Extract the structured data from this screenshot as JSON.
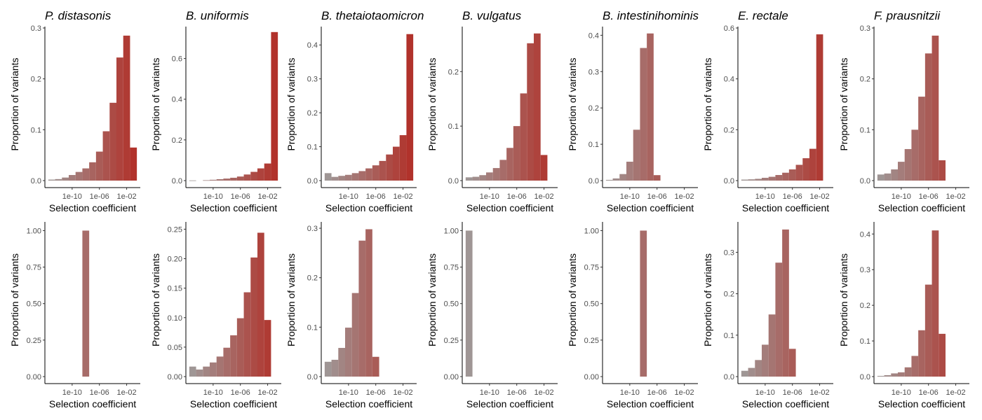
{
  "colors": {
    "low": "#9e9e9e",
    "high": "#b22a22",
    "axis": "#000000",
    "tick_text": "#4d4d4d"
  },
  "chart_data": [
    {
      "type": "bar",
      "row": 1,
      "title": "P. distasonis",
      "xlabel": "Selection coefficient",
      "ylabel": "Proportion of variants",
      "x_min": -14,
      "x_max": 0,
      "x_ticks": [
        {
          "v": -10,
          "label": "1e-10"
        },
        {
          "v": -6,
          "label": "1e-06"
        },
        {
          "v": -2,
          "label": "1e-02"
        }
      ],
      "y_max": 0.3,
      "y_ticks": [
        {
          "v": 0,
          "label": "0.0"
        },
        {
          "v": 0.1,
          "label": "0.1"
        },
        {
          "v": 0.2,
          "label": "0.2"
        },
        {
          "v": 0.3,
          "label": "0.3"
        }
      ],
      "bins": [
        {
          "x": -13,
          "y": 0.002
        },
        {
          "x": -12,
          "y": 0.003
        },
        {
          "x": -11,
          "y": 0.006
        },
        {
          "x": -10,
          "y": 0.011
        },
        {
          "x": -9,
          "y": 0.017
        },
        {
          "x": -8,
          "y": 0.024
        },
        {
          "x": -7,
          "y": 0.036
        },
        {
          "x": -6,
          "y": 0.057
        },
        {
          "x": -5,
          "y": 0.097
        },
        {
          "x": -4,
          "y": 0.153
        },
        {
          "x": -3,
          "y": 0.242
        },
        {
          "x": -2,
          "y": 0.285
        },
        {
          "x": -1,
          "y": 0.065
        }
      ]
    },
    {
      "type": "bar",
      "row": 1,
      "title": "B. uniformis",
      "xlabel": "Selection coefficient",
      "ylabel": "Proportion of variants",
      "x_min": -14,
      "x_max": 0,
      "x_ticks": [
        {
          "v": -10,
          "label": "1e-10"
        },
        {
          "v": -6,
          "label": "1e-06"
        },
        {
          "v": -2,
          "label": "1e-02"
        }
      ],
      "y_max": 0.75,
      "y_ticks": [
        {
          "v": 0,
          "label": "0.0"
        },
        {
          "v": 0.2,
          "label": "0.2"
        },
        {
          "v": 0.4,
          "label": "0.4"
        },
        {
          "v": 0.6,
          "label": "0.6"
        }
      ],
      "bins": [
        {
          "x": -13,
          "y": 0.001
        },
        {
          "x": -11,
          "y": 0.002
        },
        {
          "x": -10,
          "y": 0.004
        },
        {
          "x": -9,
          "y": 0.007
        },
        {
          "x": -8,
          "y": 0.01
        },
        {
          "x": -7,
          "y": 0.014
        },
        {
          "x": -6,
          "y": 0.02
        },
        {
          "x": -5,
          "y": 0.03
        },
        {
          "x": -4,
          "y": 0.043
        },
        {
          "x": -3,
          "y": 0.06
        },
        {
          "x": -2,
          "y": 0.084
        },
        {
          "x": -1,
          "y": 0.73
        }
      ]
    },
    {
      "type": "bar",
      "row": 1,
      "title": "B. thetaiotaomicron",
      "xlabel": "Selection coefficient",
      "ylabel": "Proportion of variants",
      "x_min": -14,
      "x_max": 0,
      "x_ticks": [
        {
          "v": -10,
          "label": "1e-10"
        },
        {
          "v": -6,
          "label": "1e-06"
        },
        {
          "v": -2,
          "label": "1e-02"
        }
      ],
      "y_max": 0.45,
      "y_ticks": [
        {
          "v": 0,
          "label": "0.0"
        },
        {
          "v": 0.1,
          "label": "0.1"
        },
        {
          "v": 0.2,
          "label": "0.2"
        },
        {
          "v": 0.3,
          "label": "0.3"
        },
        {
          "v": 0.4,
          "label": "0.4"
        }
      ],
      "bins": [
        {
          "x": -13,
          "y": 0.022
        },
        {
          "x": -12,
          "y": 0.011
        },
        {
          "x": -11,
          "y": 0.014
        },
        {
          "x": -10,
          "y": 0.017
        },
        {
          "x": -9,
          "y": 0.022
        },
        {
          "x": -8,
          "y": 0.028
        },
        {
          "x": -7,
          "y": 0.036
        },
        {
          "x": -6,
          "y": 0.045
        },
        {
          "x": -5,
          "y": 0.058
        },
        {
          "x": -4,
          "y": 0.077
        },
        {
          "x": -3,
          "y": 0.1
        },
        {
          "x": -2,
          "y": 0.134
        },
        {
          "x": -1,
          "y": 0.432
        }
      ]
    },
    {
      "type": "bar",
      "row": 1,
      "title": "B. vulgatus",
      "xlabel": "Selection coefficient",
      "ylabel": "Proportion of variants",
      "x_min": -14,
      "x_max": 0,
      "x_ticks": [
        {
          "v": -10,
          "label": "1e-10"
        },
        {
          "v": -6,
          "label": "1e-06"
        },
        {
          "v": -2,
          "label": "1e-02"
        }
      ],
      "y_max": 0.28,
      "y_ticks": [
        {
          "v": 0,
          "label": "0.0"
        },
        {
          "v": 0.1,
          "label": "0.1"
        },
        {
          "v": 0.2,
          "label": "0.2"
        }
      ],
      "bins": [
        {
          "x": -13,
          "y": 0.006
        },
        {
          "x": -12,
          "y": 0.007
        },
        {
          "x": -11,
          "y": 0.01
        },
        {
          "x": -10,
          "y": 0.015
        },
        {
          "x": -9,
          "y": 0.023
        },
        {
          "x": -8,
          "y": 0.038
        },
        {
          "x": -7,
          "y": 0.06
        },
        {
          "x": -6,
          "y": 0.1
        },
        {
          "x": -5,
          "y": 0.16
        },
        {
          "x": -4,
          "y": 0.252
        },
        {
          "x": -3,
          "y": 0.27
        },
        {
          "x": -2,
          "y": 0.047
        }
      ]
    },
    {
      "type": "bar",
      "row": 1,
      "title": "B. intestinihominis",
      "xlabel": "Selection coefficient",
      "ylabel": "Proportion of variants",
      "x_min": -14,
      "x_max": 0,
      "x_ticks": [
        {
          "v": -10,
          "label": "1e-10"
        },
        {
          "v": -6,
          "label": "1e-06"
        },
        {
          "v": -2,
          "label": "1e-02"
        }
      ],
      "y_max": 0.42,
      "y_ticks": [
        {
          "v": 0,
          "label": "0.0"
        },
        {
          "v": 0.1,
          "label": "0.1"
        },
        {
          "v": 0.2,
          "label": "0.2"
        },
        {
          "v": 0.3,
          "label": "0.3"
        },
        {
          "v": 0.4,
          "label": "0.4"
        }
      ],
      "bins": [
        {
          "x": -13,
          "y": 0.002
        },
        {
          "x": -12,
          "y": 0.006
        },
        {
          "x": -11,
          "y": 0.018
        },
        {
          "x": -10,
          "y": 0.052
        },
        {
          "x": -9,
          "y": 0.14
        },
        {
          "x": -8,
          "y": 0.365
        },
        {
          "x": -7,
          "y": 0.405
        },
        {
          "x": -6,
          "y": 0.015
        }
      ]
    },
    {
      "type": "bar",
      "row": 1,
      "title": "E. rectale",
      "xlabel": "Selection coefficient",
      "ylabel": "Proportion of variants",
      "x_min": -14,
      "x_max": 0,
      "x_ticks": [
        {
          "v": -10,
          "label": "1e-10"
        },
        {
          "v": -6,
          "label": "1e-06"
        },
        {
          "v": -2,
          "label": "1e-02"
        }
      ],
      "y_max": 0.6,
      "y_ticks": [
        {
          "v": 0,
          "label": "0.0"
        },
        {
          "v": 0.2,
          "label": "0.2"
        },
        {
          "v": 0.4,
          "label": "0.4"
        },
        {
          "v": 0.6,
          "label": "0.6"
        }
      ],
      "bins": [
        {
          "x": -13,
          "y": 0.004
        },
        {
          "x": -12,
          "y": 0.005
        },
        {
          "x": -11,
          "y": 0.007
        },
        {
          "x": -10,
          "y": 0.011
        },
        {
          "x": -9,
          "y": 0.015
        },
        {
          "x": -8,
          "y": 0.022
        },
        {
          "x": -7,
          "y": 0.031
        },
        {
          "x": -6,
          "y": 0.044
        },
        {
          "x": -5,
          "y": 0.062
        },
        {
          "x": -4,
          "y": 0.088
        },
        {
          "x": -3,
          "y": 0.125
        },
        {
          "x": -2,
          "y": 0.575
        }
      ]
    },
    {
      "type": "bar",
      "row": 1,
      "title": "F. prausnitzii",
      "xlabel": "Selection coefficient",
      "ylabel": "Proportion of variants",
      "x_min": -14,
      "x_max": 0,
      "x_ticks": [
        {
          "v": -10,
          "label": "1e-10"
        },
        {
          "v": -6,
          "label": "1e-06"
        },
        {
          "v": -2,
          "label": "1e-02"
        }
      ],
      "y_max": 0.3,
      "y_ticks": [
        {
          "v": 0,
          "label": "0.0"
        },
        {
          "v": 0.1,
          "label": "0.1"
        },
        {
          "v": 0.2,
          "label": "0.2"
        },
        {
          "v": 0.3,
          "label": "0.3"
        }
      ],
      "bins": [
        {
          "x": -13,
          "y": 0.012
        },
        {
          "x": -12,
          "y": 0.014
        },
        {
          "x": -11,
          "y": 0.022
        },
        {
          "x": -10,
          "y": 0.037
        },
        {
          "x": -9,
          "y": 0.062
        },
        {
          "x": -8,
          "y": 0.1
        },
        {
          "x": -7,
          "y": 0.165
        },
        {
          "x": -6,
          "y": 0.25
        },
        {
          "x": -5,
          "y": 0.285
        },
        {
          "x": -4,
          "y": 0.04
        }
      ]
    },
    {
      "type": "bar",
      "row": 2,
      "title": "",
      "xlabel": "Selection coefficient",
      "ylabel": "Proportion of variants",
      "x_min": -14,
      "x_max": 0,
      "x_ticks": [
        {
          "v": -10,
          "label": "1e-10"
        },
        {
          "v": -6,
          "label": "1e-06"
        },
        {
          "v": -2,
          "label": "1e-02"
        }
      ],
      "y_max": 1.05,
      "y_ticks": [
        {
          "v": 0,
          "label": "0.00"
        },
        {
          "v": 0.25,
          "label": "0.25"
        },
        {
          "v": 0.5,
          "label": "0.50"
        },
        {
          "v": 0.75,
          "label": "0.75"
        },
        {
          "v": 1.0,
          "label": "1.00"
        }
      ],
      "bins": [
        {
          "x": -8,
          "y": 1.0
        }
      ]
    },
    {
      "type": "bar",
      "row": 2,
      "title": "",
      "xlabel": "Selection coefficient",
      "ylabel": "Proportion of variants",
      "x_min": -14,
      "x_max": 0,
      "x_ticks": [
        {
          "v": -10,
          "label": "1e-10"
        },
        {
          "v": -6,
          "label": "1e-06"
        },
        {
          "v": -2,
          "label": "1e-02"
        }
      ],
      "y_max": 0.26,
      "y_ticks": [
        {
          "v": 0,
          "label": "0.00"
        },
        {
          "v": 0.05,
          "label": "0.05"
        },
        {
          "v": 0.1,
          "label": "0.10"
        },
        {
          "v": 0.15,
          "label": "0.15"
        },
        {
          "v": 0.2,
          "label": "0.20"
        },
        {
          "v": 0.25,
          "label": "0.25"
        }
      ],
      "bins": [
        {
          "x": -13,
          "y": 0.017
        },
        {
          "x": -12,
          "y": 0.012
        },
        {
          "x": -11,
          "y": 0.017
        },
        {
          "x": -10,
          "y": 0.024
        },
        {
          "x": -9,
          "y": 0.034
        },
        {
          "x": -8,
          "y": 0.049
        },
        {
          "x": -7,
          "y": 0.07
        },
        {
          "x": -6,
          "y": 0.099
        },
        {
          "x": -5,
          "y": 0.143
        },
        {
          "x": -4,
          "y": 0.202
        },
        {
          "x": -3,
          "y": 0.244
        },
        {
          "x": -2,
          "y": 0.096
        }
      ]
    },
    {
      "type": "bar",
      "row": 2,
      "title": "",
      "xlabel": "Selection coefficient",
      "ylabel": "Proportion of variants",
      "x_min": -14,
      "x_max": 0,
      "x_ticks": [
        {
          "v": -10,
          "label": "1e-10"
        },
        {
          "v": -6,
          "label": "1e-06"
        },
        {
          "v": -2,
          "label": "1e-02"
        }
      ],
      "y_max": 0.31,
      "y_ticks": [
        {
          "v": 0,
          "label": "0.0"
        },
        {
          "v": 0.1,
          "label": "0.1"
        },
        {
          "v": 0.2,
          "label": "0.2"
        },
        {
          "v": 0.3,
          "label": "0.3"
        }
      ],
      "bins": [
        {
          "x": -13,
          "y": 0.03
        },
        {
          "x": -12,
          "y": 0.034
        },
        {
          "x": -11,
          "y": 0.058
        },
        {
          "x": -10,
          "y": 0.099
        },
        {
          "x": -9,
          "y": 0.169
        },
        {
          "x": -8,
          "y": 0.275
        },
        {
          "x": -7,
          "y": 0.298
        },
        {
          "x": -6,
          "y": 0.04
        }
      ]
    },
    {
      "type": "bar",
      "row": 2,
      "title": "",
      "xlabel": "Selection coefficient",
      "ylabel": "Proportion of variants",
      "x_min": -14,
      "x_max": 0,
      "x_ticks": [
        {
          "v": -10,
          "label": "1e-10"
        },
        {
          "v": -6,
          "label": "1e-06"
        },
        {
          "v": -2,
          "label": "1e-02"
        }
      ],
      "y_max": 1.05,
      "y_ticks": [
        {
          "v": 0,
          "label": "0.00"
        },
        {
          "v": 0.25,
          "label": "0.25"
        },
        {
          "v": 0.5,
          "label": "0.50"
        },
        {
          "v": 0.75,
          "label": "0.75"
        },
        {
          "v": 1.0,
          "label": "1.00"
        }
      ],
      "bins": [
        {
          "x": -13,
          "y": 1.0
        }
      ]
    },
    {
      "type": "bar",
      "row": 2,
      "title": "",
      "xlabel": "Selection coefficient",
      "ylabel": "Proportion of variants",
      "x_min": -14,
      "x_max": 0,
      "x_ticks": [
        {
          "v": -10,
          "label": "1e-10"
        },
        {
          "v": -6,
          "label": "1e-06"
        },
        {
          "v": -2,
          "label": "1e-02"
        }
      ],
      "y_max": 1.05,
      "y_ticks": [
        {
          "v": 0,
          "label": "0.00"
        },
        {
          "v": 0.25,
          "label": "0.25"
        },
        {
          "v": 0.5,
          "label": "0.50"
        },
        {
          "v": 0.75,
          "label": "0.75"
        },
        {
          "v": 1.0,
          "label": "1.00"
        }
      ],
      "bins": [
        {
          "x": -8,
          "y": 1.0
        }
      ]
    },
    {
      "type": "bar",
      "row": 2,
      "title": "",
      "xlabel": "Selection coefficient",
      "ylabel": "Proportion of variants",
      "x_min": -14,
      "x_max": 0,
      "x_ticks": [
        {
          "v": -10,
          "label": "1e-10"
        },
        {
          "v": -6,
          "label": "1e-06"
        },
        {
          "v": -2,
          "label": "1e-02"
        }
      ],
      "y_max": 0.37,
      "y_ticks": [
        {
          "v": 0,
          "label": "0.0"
        },
        {
          "v": 0.1,
          "label": "0.1"
        },
        {
          "v": 0.2,
          "label": "0.2"
        },
        {
          "v": 0.3,
          "label": "0.3"
        }
      ],
      "bins": [
        {
          "x": -13,
          "y": 0.014
        },
        {
          "x": -12,
          "y": 0.021
        },
        {
          "x": -11,
          "y": 0.04
        },
        {
          "x": -10,
          "y": 0.077
        },
        {
          "x": -9,
          "y": 0.15
        },
        {
          "x": -8,
          "y": 0.275
        },
        {
          "x": -7,
          "y": 0.355
        },
        {
          "x": -6,
          "y": 0.067
        }
      ]
    },
    {
      "type": "bar",
      "row": 2,
      "title": "",
      "xlabel": "Selection coefficient",
      "ylabel": "Proportion of variants",
      "x_min": -14,
      "x_max": 0,
      "x_ticks": [
        {
          "v": -10,
          "label": "1e-10"
        },
        {
          "v": -6,
          "label": "1e-06"
        },
        {
          "v": -2,
          "label": "1e-02"
        }
      ],
      "y_max": 0.43,
      "y_ticks": [
        {
          "v": 0,
          "label": "0.0"
        },
        {
          "v": 0.1,
          "label": "0.1"
        },
        {
          "v": 0.2,
          "label": "0.2"
        },
        {
          "v": 0.3,
          "label": "0.3"
        },
        {
          "v": 0.4,
          "label": "0.4"
        }
      ],
      "bins": [
        {
          "x": -13,
          "y": 0.002
        },
        {
          "x": -12,
          "y": 0.004
        },
        {
          "x": -11,
          "y": 0.009
        },
        {
          "x": -10,
          "y": 0.012
        },
        {
          "x": -9,
          "y": 0.026
        },
        {
          "x": -8,
          "y": 0.058
        },
        {
          "x": -7,
          "y": 0.13
        },
        {
          "x": -6,
          "y": 0.258
        },
        {
          "x": -5,
          "y": 0.41
        },
        {
          "x": -4,
          "y": 0.12
        }
      ]
    }
  ]
}
